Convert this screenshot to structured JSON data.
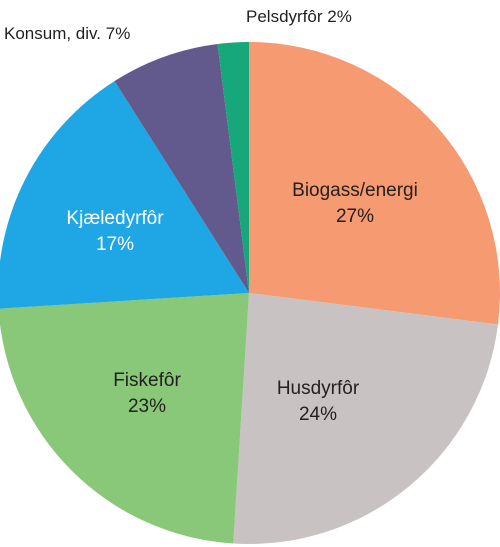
{
  "chart_data": {
    "type": "pie",
    "title": "",
    "slices": [
      {
        "name": "Biogass/energi",
        "value": 27,
        "value_label": "27%",
        "color": "#f59a71",
        "text_color": "#231f20",
        "label_pos": "inside"
      },
      {
        "name": "Husdyrfôr",
        "value": 24,
        "value_label": "24%",
        "color": "#c8c3c2",
        "text_color": "#231f20",
        "label_pos": "inside"
      },
      {
        "name": "Fiskefôr",
        "value": 23,
        "value_label": "23%",
        "color": "#88c878",
        "text_color": "#231f20",
        "label_pos": "inside"
      },
      {
        "name": "Kjæledyrfôr",
        "value": 17,
        "value_label": "17%",
        "color": "#1ea7e4",
        "text_color": "#ffffff",
        "label_pos": "inside"
      },
      {
        "name": "Konsum, div.",
        "value": 7,
        "value_label": "7%",
        "color": "#625a8c",
        "text_color": "#231f20",
        "label_pos": "outside"
      },
      {
        "name": "Pelsdyrfôr",
        "value": 2,
        "value_label": "2%",
        "color": "#16a77a",
        "text_color": "#231f20",
        "label_pos": "outside"
      }
    ],
    "start": "top",
    "direction": "clockwise",
    "legend": "none"
  }
}
